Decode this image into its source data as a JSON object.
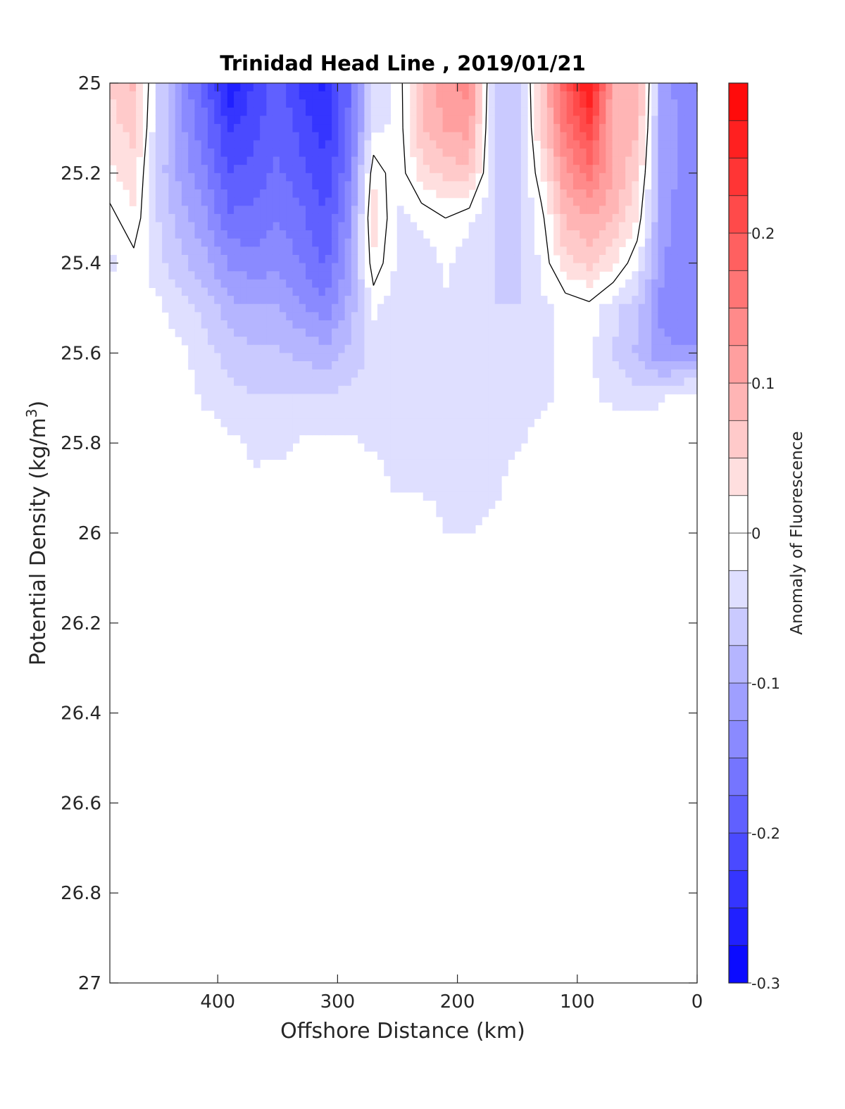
{
  "chart_data": {
    "type": "heatmap",
    "title": "Trinidad Head Line , 2019/01/21",
    "xlabel": "Offshore Distance (km)",
    "ylabel_main": "Potential Density (kg/m",
    "ylabel_sup": "3",
    "ylabel_end": ")",
    "colorbar_label": "Anomaly of Fluorescence",
    "xlim": [
      490,
      0
    ],
    "x_reversed": true,
    "ylim": [
      25,
      27
    ],
    "y_reversed": true,
    "x_ticks": [
      400,
      300,
      200,
      100,
      0
    ],
    "x_tick_labels": [
      "400",
      "300",
      "200",
      "100",
      "0"
    ],
    "y_ticks": [
      25,
      25.2,
      25.4,
      25.6,
      25.8,
      26,
      26.2,
      26.4,
      26.6,
      26.8,
      27
    ],
    "y_tick_labels": [
      "25",
      "25.2",
      "25.4",
      "25.6",
      "25.8",
      "26",
      "26.2",
      "26.4",
      "26.6",
      "26.8",
      "27"
    ],
    "colorbar_range": [
      -0.3,
      0.3
    ],
    "colorbar_ticks": [
      -0.3,
      -0.2,
      -0.1,
      0,
      0.1,
      0.2
    ],
    "colorbar_tick_labels": [
      "-0.3",
      "-0.2",
      "-0.1",
      "0",
      "0.1",
      "0.2"
    ],
    "colorbar_levels": 24,
    "colormap": {
      "negative": "#0000ff",
      "zero": "#ffffff",
      "positive": "#ff0000"
    },
    "zero_contour": "black",
    "x": [
      490,
      470,
      450,
      430,
      410,
      390,
      370,
      350,
      330,
      310,
      290,
      270,
      250,
      230,
      210,
      190,
      170,
      150,
      130,
      110,
      90,
      70,
      50,
      30,
      10
    ],
    "y": [
      25.0,
      25.1,
      25.2,
      25.3,
      25.4,
      25.5,
      25.6,
      25.7,
      25.8,
      25.9,
      26.0
    ],
    "z": [
      [
        0.05,
        0.08,
        -0.05,
        -0.13,
        -0.19,
        -0.27,
        -0.22,
        -0.19,
        -0.23,
        -0.26,
        -0.17,
        -0.04,
        -0.02,
        0.08,
        0.12,
        0.14,
        -0.05,
        -0.07,
        0.06,
        0.19,
        0.28,
        0.1,
        0.1,
        -0.1,
        -0.15
      ],
      [
        0.04,
        0.06,
        -0.05,
        -0.12,
        -0.17,
        -0.23,
        -0.21,
        -0.18,
        -0.21,
        -0.24,
        -0.17,
        -0.03,
        -0.02,
        0.07,
        0.1,
        0.11,
        -0.05,
        -0.07,
        0.05,
        0.16,
        0.22,
        0.09,
        0.08,
        -0.1,
        -0.14
      ],
      [
        0.02,
        0.04,
        -0.06,
        -0.11,
        -0.15,
        -0.2,
        -0.19,
        -0.17,
        -0.19,
        -0.22,
        -0.15,
        0.02,
        -0.02,
        0.04,
        0.06,
        0.07,
        -0.05,
        -0.06,
        0.02,
        0.12,
        0.16,
        0.1,
        0.05,
        -0.1,
        -0.14
      ],
      [
        -0.01,
        0.02,
        -0.05,
        -0.09,
        -0.12,
        -0.17,
        -0.17,
        -0.15,
        -0.17,
        -0.2,
        -0.13,
        0.04,
        -0.03,
        -0.02,
        0.0,
        -0.02,
        -0.05,
        -0.06,
        -0.01,
        0.08,
        0.1,
        0.08,
        0.02,
        -0.11,
        -0.15
      ],
      [
        -0.03,
        -0.01,
        -0.04,
        -0.07,
        -0.09,
        -0.13,
        -0.14,
        -0.13,
        -0.15,
        -0.18,
        -0.11,
        0.02,
        -0.03,
        -0.04,
        -0.02,
        -0.04,
        -0.05,
        -0.06,
        -0.02,
        0.04,
        0.06,
        0.03,
        -0.02,
        -0.12,
        -0.15
      ],
      [
        -0.02,
        -0.01,
        -0.02,
        -0.04,
        -0.06,
        -0.09,
        -0.1,
        -0.1,
        -0.12,
        -0.14,
        -0.09,
        -0.02,
        -0.04,
        -0.04,
        -0.03,
        -0.05,
        -0.05,
        -0.05,
        -0.03,
        -0.02,
        -0.01,
        -0.04,
        -0.07,
        -0.13,
        -0.15
      ],
      [
        -0.01,
        -0.01,
        -0.01,
        -0.02,
        -0.04,
        -0.06,
        -0.07,
        -0.07,
        -0.08,
        -0.09,
        -0.07,
        -0.04,
        -0.05,
        -0.04,
        -0.03,
        -0.05,
        -0.05,
        -0.04,
        -0.03,
        -0.02,
        -0.02,
        -0.05,
        -0.08,
        -0.12,
        -0.12
      ],
      [
        -0.01,
        -0.01,
        -0.01,
        -0.01,
        -0.03,
        -0.04,
        -0.05,
        -0.05,
        -0.05,
        -0.05,
        -0.04,
        -0.04,
        -0.05,
        -0.04,
        -0.03,
        -0.05,
        -0.05,
        -0.04,
        -0.03,
        -0.02,
        -0.02,
        -0.03,
        -0.04,
        -0.03,
        -0.01
      ],
      [
        0.0,
        0.0,
        0.0,
        0.0,
        -0.01,
        -0.02,
        -0.03,
        -0.04,
        -0.02,
        -0.02,
        -0.02,
        -0.03,
        -0.05,
        -0.04,
        -0.03,
        -0.05,
        -0.05,
        -0.03,
        -0.01,
        -0.01,
        0.0,
        0.0,
        0.0,
        0.0,
        0.0
      ],
      [
        0.0,
        0.0,
        0.0,
        0.0,
        0.0,
        0.0,
        -0.02,
        0.0,
        0.0,
        0.0,
        0.0,
        0.0,
        -0.03,
        -0.03,
        -0.03,
        -0.05,
        -0.04,
        0.0,
        0.0,
        0.0,
        0.0,
        0.0,
        0.0,
        0.0,
        0.0
      ],
      [
        0.0,
        0.0,
        0.0,
        0.0,
        0.0,
        0.0,
        0.0,
        0.0,
        0.0,
        0.0,
        0.0,
        0.0,
        0.0,
        0.0,
        -0.03,
        -0.03,
        0.0,
        0.0,
        0.0,
        0.0,
        0.0,
        0.0,
        0.0,
        0.0,
        0.0
      ]
    ]
  }
}
